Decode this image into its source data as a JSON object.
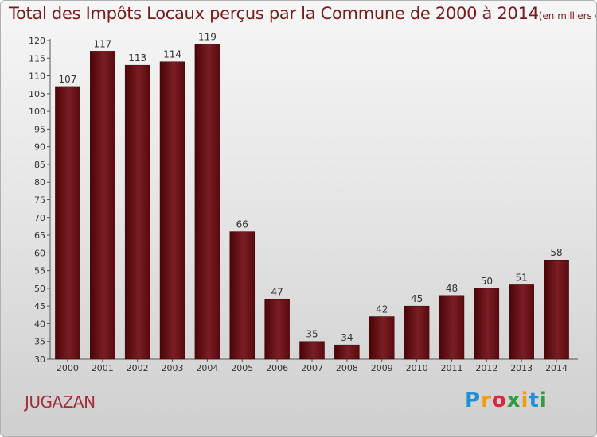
{
  "chart_data": {
    "type": "bar",
    "title": "Total des Impôts Locaux perçus par la Commune de 2000 à 2014",
    "unit": "(en milliers d'€)",
    "categories": [
      "2000",
      "2001",
      "2002",
      "2003",
      "2004",
      "2005",
      "2006",
      "2007",
      "2008",
      "2009",
      "2010",
      "2011",
      "2012",
      "2013",
      "2014"
    ],
    "values": [
      107,
      117,
      113,
      114,
      119,
      66,
      47,
      35,
      34,
      42,
      45,
      48,
      50,
      51,
      58
    ],
    "ylim": [
      30,
      120
    ],
    "ytick_step": 5,
    "xlabel": "",
    "ylabel": "",
    "grid": false,
    "bar_color": "#6b0d12"
  },
  "footer": {
    "commune": "JUGAZAN",
    "brand": {
      "letters": [
        "P",
        "r",
        "o",
        "x",
        "i",
        "t",
        "i"
      ],
      "colors": [
        "#1f8fd6",
        "#f39c12",
        "#d7263d",
        "#2e9d3e",
        "#f39c12",
        "#1f8fd6",
        "#2e9d3e"
      ]
    }
  }
}
